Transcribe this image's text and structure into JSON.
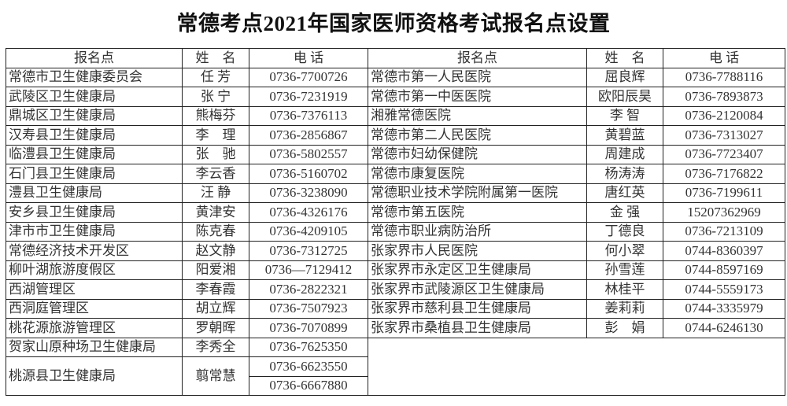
{
  "title": "常德考点2021年国家医师资格考试报名点设置",
  "headers": {
    "site": "报名点",
    "name": "姓　名",
    "phone": "电 话"
  },
  "left_rows": [
    {
      "site": "常德市卫生健康委员会",
      "name": "任 芳",
      "phone": "0736-7700726"
    },
    {
      "site": "武陵区卫生健康局",
      "name": "张 宁",
      "phone": "0736-7231919"
    },
    {
      "site": "鼎城区卫生健康局",
      "name": "熊梅芬",
      "phone": "0736-7376113"
    },
    {
      "site": "汉寿县卫生健康局",
      "name": "李　理",
      "phone": "0736-2856867"
    },
    {
      "site": "临澧县卫生健康局",
      "name": "张　驰",
      "phone": "0736-5802557"
    },
    {
      "site": "石门县卫生健康局",
      "name": "李云香",
      "phone": "0736-5160702"
    },
    {
      "site": "澧县卫生健康局",
      "name": "汪 静",
      "phone": "0736-3238090"
    },
    {
      "site": "安乡县卫生健康局",
      "name": "黄津安",
      "phone": "0736-4326176"
    },
    {
      "site": "津市市卫生健康局",
      "name": "陈克春",
      "phone": "0736-4209105"
    },
    {
      "site": "常德经济技术开发区",
      "name": "赵文静",
      "phone": "0736-7312725"
    },
    {
      "site": "柳叶湖旅游度假区",
      "name": "阳爱湘",
      "phone": "0736—7129412"
    },
    {
      "site": "西湖管理区",
      "name": "李春霞",
      "phone": "0736-2822321"
    },
    {
      "site": "西洞庭管理区",
      "name": "胡立辉",
      "phone": "0736-7507923"
    },
    {
      "site": "桃花源旅游管理区",
      "name": "罗朝晖",
      "phone": "0736-7070899"
    },
    {
      "site": "贺家山原种场卫生健康局",
      "name": "李秀全",
      "phone": "0736-7625350"
    }
  ],
  "last_left_row": {
    "site": "桃源县卫生健康局",
    "name": "翦常慧",
    "phones": [
      "0736-6623550",
      "0736-6667880"
    ]
  },
  "right_rows": [
    {
      "site": "常德市第一人民医院",
      "name": "屈良辉",
      "phone": "0736-7788116"
    },
    {
      "site": "常德市第一中医医院",
      "name": "欧阳辰昊",
      "phone": "0736-7893873"
    },
    {
      "site": "湘雅常德医院",
      "name": "李 智",
      "phone": "0736-2120084"
    },
    {
      "site": "常德市第二人民医院",
      "name": "黄碧蓝",
      "phone": "0736-7313027"
    },
    {
      "site": "常德市妇幼保健院",
      "name": "周建成",
      "phone": "0736-7723407"
    },
    {
      "site": "常德市康复医院",
      "name": "杨涛涛",
      "phone": "0736-7176822"
    },
    {
      "site": "常德职业技术学院附属第一医院",
      "name": "唐红英",
      "phone": "0736-7199611"
    },
    {
      "site": "常德市第五医院",
      "name": "金 强",
      "phone": "15207362969"
    },
    {
      "site": "常德市职业病防治所",
      "name": "丁德良",
      "phone": "0736-7213109"
    },
    {
      "site": "张家界市人民医院",
      "name": "何小翠",
      "phone": "0744-8360397"
    },
    {
      "site": "张家界市永定区卫生健康局",
      "name": "孙雪莲",
      "phone": "0744-8597169"
    },
    {
      "site": "张家界市武陵源区卫生健康局",
      "name": "林桂平",
      "phone": "0744-5559173"
    },
    {
      "site": "张家界市慈利县卫生健康局",
      "name": "姜莉莉",
      "phone": "0744-3335979"
    },
    {
      "site": "张家界市桑植县卫生健康局",
      "name": "彭　娟",
      "phone": "0744-6246130"
    }
  ]
}
